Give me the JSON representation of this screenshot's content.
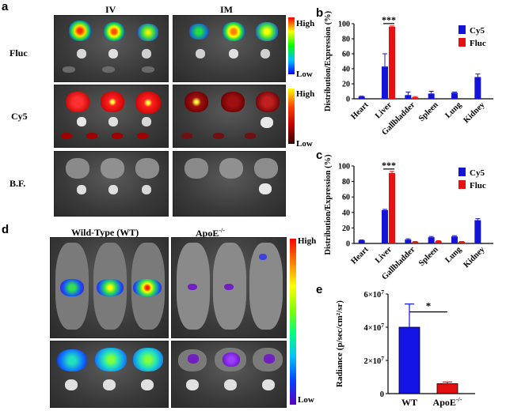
{
  "panels": {
    "a": {
      "letter": "a",
      "col_iv": "IV",
      "col_im": "IM",
      "row_fluc": "Fluc",
      "row_cy5": "Cy5",
      "row_bf": "B.F.",
      "high": "High",
      "low": "Low"
    },
    "d": {
      "letter": "d",
      "wt": "Wild-Type (WT)",
      "apoe": "ApoE",
      "apoe_sup": "-/-",
      "high": "High",
      "low": "Low"
    }
  },
  "colors": {
    "cy5": "#1414d8",
    "fluc": "#e81010",
    "wt_bar": "#1414e6",
    "apoe_bar": "#e01010"
  },
  "chart_data": [
    {
      "panel": "b",
      "type": "bar",
      "ylabel": "Distribution/Expression (%)",
      "ylim": [
        0,
        100
      ],
      "yticks": [
        0,
        20,
        40,
        60,
        80,
        100
      ],
      "categories": [
        "Heart",
        "Liver",
        "Gallbladder",
        "Spleen",
        "Lung",
        "Kidney"
      ],
      "series": [
        {
          "name": "Cy5",
          "color": "#1414d8",
          "values": [
            3,
            43,
            5,
            7,
            8,
            29
          ],
          "errors": [
            0.5,
            17,
            4,
            3,
            1,
            4
          ]
        },
        {
          "name": "Fluc",
          "color": "#e81010",
          "values": [
            0,
            96,
            2,
            0,
            0,
            0
          ],
          "errors": [
            0,
            1,
            1,
            0,
            0,
            0
          ]
        }
      ],
      "significance": "***",
      "legend": "top-right"
    },
    {
      "panel": "c",
      "type": "bar",
      "ylabel": "Distribution/Expression (%)",
      "ylim": [
        0,
        100
      ],
      "yticks": [
        0,
        20,
        40,
        60,
        80,
        100
      ],
      "categories": [
        "Heart",
        "Liver",
        "Gallbladder",
        "Spleen",
        "Lung",
        "Kidney"
      ],
      "series": [
        {
          "name": "Cy5",
          "color": "#1414d8",
          "values": [
            4,
            43,
            5,
            8,
            9,
            30
          ],
          "errors": [
            0.5,
            1,
            1,
            1,
            1,
            2
          ]
        },
        {
          "name": "Fluc",
          "color": "#e81010",
          "values": [
            0,
            91,
            2,
            3,
            2,
            0
          ],
          "errors": [
            0,
            2,
            0.5,
            0.5,
            0.5,
            0
          ]
        }
      ],
      "significance": "***",
      "legend": "top-right"
    },
    {
      "panel": "e",
      "type": "bar",
      "ylabel": "Radiance (p/sec/cm²/sr)",
      "ylim": [
        0,
        60000000
      ],
      "ytick_labels": [
        {
          "value": 0,
          "text": "0"
        },
        {
          "value": 20000000,
          "text": "2×10",
          "sup": "7"
        },
        {
          "value": 40000000,
          "text": "4×10",
          "sup": "7"
        },
        {
          "value": 60000000,
          "text": "6×10",
          "sup": "7"
        }
      ],
      "categories": [
        "WT",
        "ApoE"
      ],
      "category_sup": [
        "",
        "-/-"
      ],
      "values": [
        40000000,
        6000000
      ],
      "errors": [
        14000000,
        1000000
      ],
      "colors": [
        "#1414e6",
        "#e01010"
      ],
      "significance": "*"
    }
  ]
}
